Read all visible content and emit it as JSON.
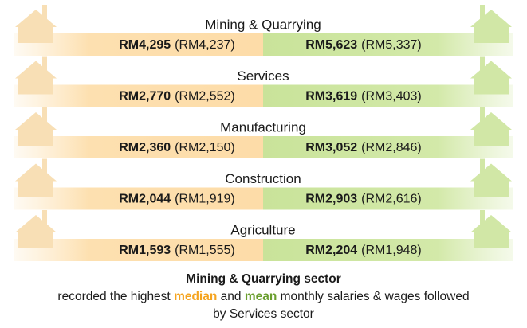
{
  "sectors": [
    {
      "name": "Mining & Quarrying",
      "median": "RM4,295",
      "median_prev": "(RM4,237)",
      "mean": "RM5,623",
      "mean_prev": "(RM5,337)"
    },
    {
      "name": "Services",
      "median": "RM2,770",
      "median_prev": "(RM2,552)",
      "mean": "RM3,619",
      "mean_prev": "(RM3,403)"
    },
    {
      "name": "Manufacturing",
      "median": "RM2,360",
      "median_prev": "(RM2,150)",
      "mean": "RM3,052",
      "mean_prev": "(RM2,846)"
    },
    {
      "name": "Construction",
      "median": "RM2,044",
      "median_prev": "(RM1,919)",
      "mean": "RM2,903",
      "mean_prev": "(RM2,616)"
    },
    {
      "name": "Agriculture",
      "median": "RM1,593",
      "median_prev": "(RM1,555)",
      "mean": "RM2,204",
      "mean_prev": "(RM1,948)"
    }
  ],
  "footer": {
    "headline": "Mining & Quarrying sector",
    "text_before": "recorded the highest",
    "median": "median",
    "and": "and",
    "mean": "mean",
    "text_after": "monthly salaries & wages followed",
    "line3": "by Services sector"
  }
}
